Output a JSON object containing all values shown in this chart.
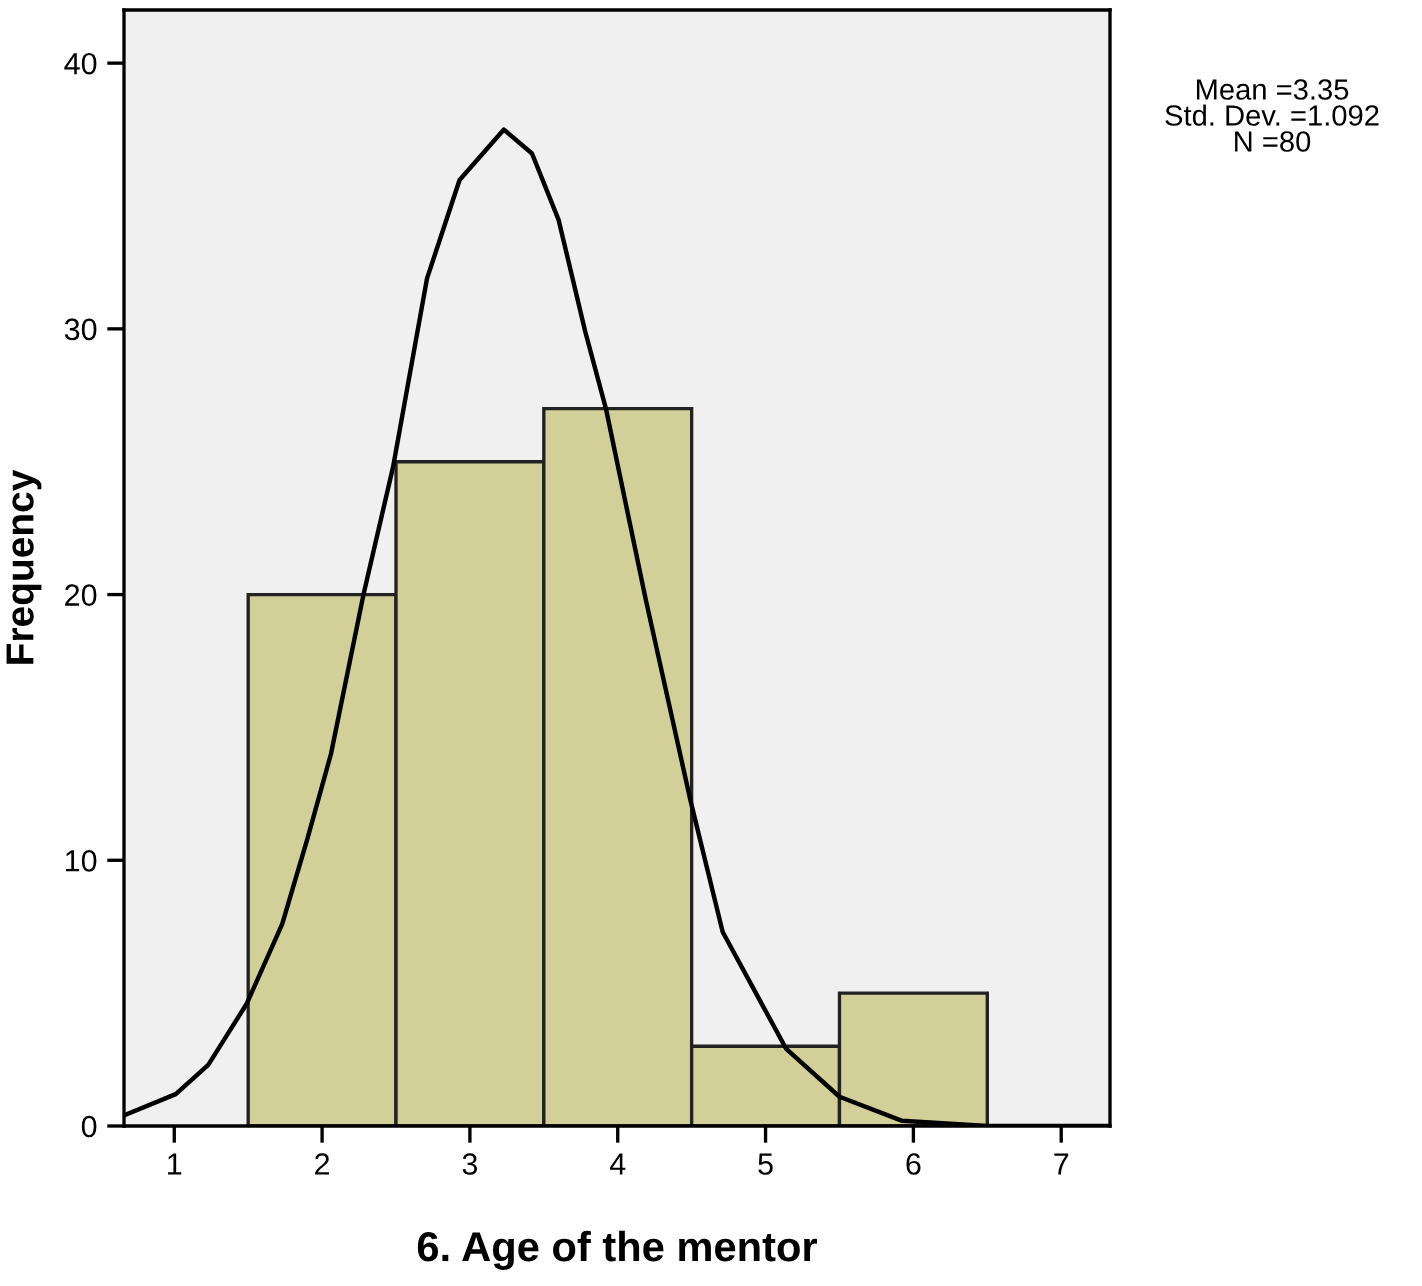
{
  "chart_data": {
    "type": "histogram",
    "xlabel": "6. Age of the mentor",
    "ylabel": "Frequency",
    "bins": [
      1.5,
      2.5,
      3.5,
      4.5,
      5.5,
      6.5
    ],
    "values": [
      20,
      25,
      27,
      3,
      5
    ],
    "color": "#d3cf98",
    "series": [
      {
        "type": "line",
        "color": "#000000",
        "x": [
          0.66,
          1.01,
          1.23,
          1.49,
          1.73,
          1.9,
          2.06,
          2.28,
          2.48,
          2.71,
          2.93,
          3.23,
          3.42,
          3.6,
          3.78,
          3.92,
          4.19,
          4.49,
          4.71,
          5.14,
          5.5,
          5.92,
          6.5,
          7.32
        ],
        "values": [
          0.4,
          1.2,
          2.3,
          4.6,
          7.6,
          10.8,
          14.0,
          20.0,
          24.8,
          31.9,
          35.6,
          37.5,
          36.6,
          34.1,
          29.9,
          27.0,
          19.8,
          12.3,
          7.3,
          2.9,
          1.1,
          0.2,
          0.0,
          0.0
        ]
      }
    ],
    "xlim": [
      0.66,
      7.33
    ],
    "ylim": [
      0,
      42
    ],
    "xticks": [
      1,
      2,
      3,
      4,
      5,
      6,
      7
    ],
    "yticks": [
      0,
      10,
      20,
      30,
      40
    ],
    "grid": false,
    "annotations": [
      "Mean =3.35",
      "Std. Dev. =1.092",
      "N =80"
    ]
  }
}
